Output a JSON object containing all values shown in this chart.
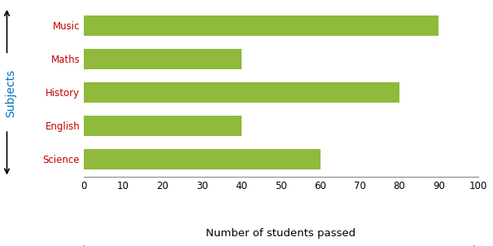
{
  "categories": [
    "Science",
    "English",
    "History",
    "Maths",
    "Music"
  ],
  "values": [
    60,
    40,
    80,
    40,
    90
  ],
  "bar_color": "#8fba3c",
  "xlabel": "Number of students passed",
  "ylabel": "Subjects",
  "xlim": [
    0,
    100
  ],
  "xticks": [
    0,
    10,
    20,
    30,
    40,
    50,
    60,
    70,
    80,
    90,
    100
  ],
  "ylabel_color": "#0070c0",
  "xlabel_color": "#000000",
  "tick_label_color": "#000000",
  "category_label_color": "#c00000",
  "bar_height": 0.62,
  "figsize": [
    6.06,
    3.02
  ],
  "dpi": 100
}
